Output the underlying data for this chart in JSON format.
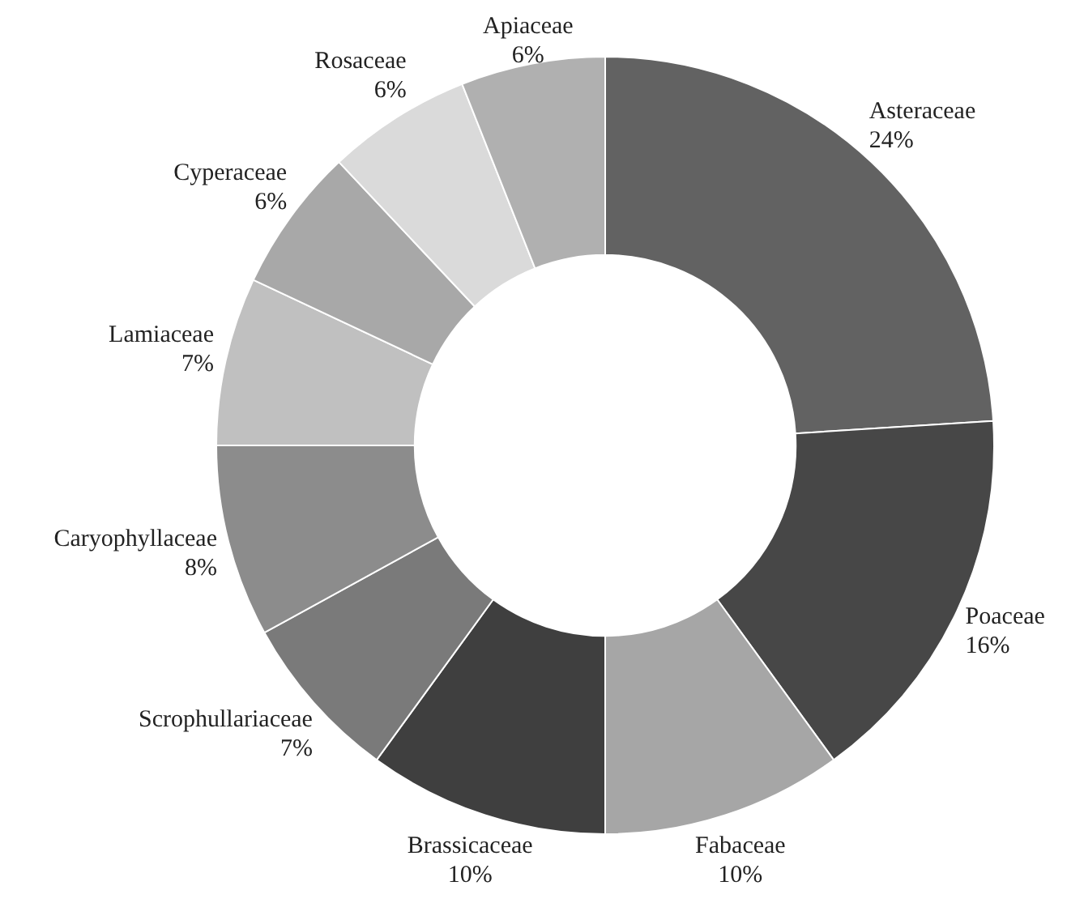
{
  "chart_data": {
    "type": "donut",
    "categories": [
      "Asteraceae",
      "Poaceae",
      "Fabaceae",
      "Brassicaceae",
      "Scrophullariaceae",
      "Caryophyllaceae",
      "Lamiaceae",
      "Cyperaceae",
      "Rosaceae",
      "Apiaceae"
    ],
    "values": [
      24,
      16,
      10,
      10,
      7,
      8,
      7,
      6,
      6,
      6
    ],
    "colors": [
      "#626262",
      "#474747",
      "#a6a6a6",
      "#3f3f3f",
      "#7a7a7a",
      "#8c8c8c",
      "#c0c0c0",
      "#a8a8a8",
      "#dadada",
      "#b0b0b0"
    ],
    "value_labels": [
      "24%",
      "16%",
      "10%",
      "10%",
      "7%",
      "8%",
      "7%",
      "6%",
      "6%",
      "6%"
    ]
  }
}
